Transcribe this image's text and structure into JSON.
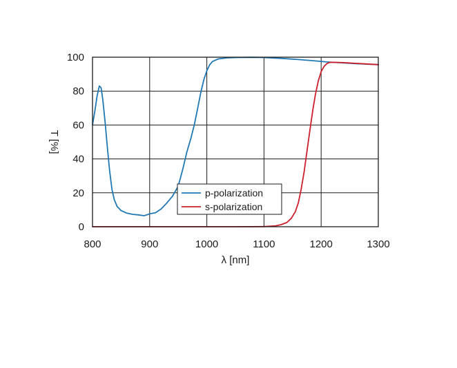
{
  "chart_data": {
    "type": "line",
    "title": "",
    "xlabel": "λ [nm]",
    "ylabel": "T [%]",
    "xlim": [
      800,
      1300
    ],
    "ylim": [
      0,
      100
    ],
    "xticks": [
      800,
      900,
      1000,
      1100,
      1200,
      1300
    ],
    "yticks": [
      0,
      20,
      40,
      60,
      80,
      100
    ],
    "x_tick_labels": [
      "800",
      "900",
      "1000",
      "1100",
      "1200",
      "1300"
    ],
    "y_tick_labels": [
      "0",
      "20",
      "40",
      "60",
      "80",
      "100"
    ],
    "grid": true,
    "legend_position": "bottom-center",
    "series": [
      {
        "name": "p-polarization",
        "color": "#1f77b4",
        "points": [
          [
            800,
            60
          ],
          [
            804,
            68
          ],
          [
            808,
            77
          ],
          [
            812,
            83
          ],
          [
            815,
            82
          ],
          [
            818,
            75
          ],
          [
            822,
            62
          ],
          [
            826,
            47
          ],
          [
            830,
            33
          ],
          [
            834,
            22
          ],
          [
            838,
            16
          ],
          [
            843,
            12
          ],
          [
            850,
            9.5
          ],
          [
            860,
            8
          ],
          [
            870,
            7.3
          ],
          [
            880,
            7
          ],
          [
            890,
            6.5
          ],
          [
            895,
            7
          ],
          [
            900,
            7.6
          ],
          [
            910,
            8.2
          ],
          [
            920,
            10.5
          ],
          [
            930,
            14
          ],
          [
            940,
            18
          ],
          [
            950,
            24
          ],
          [
            958,
            34
          ],
          [
            965,
            44
          ],
          [
            972,
            52
          ],
          [
            978,
            60
          ],
          [
            984,
            70
          ],
          [
            990,
            80
          ],
          [
            995,
            87
          ],
          [
            1000,
            92
          ],
          [
            1005,
            95.5
          ],
          [
            1010,
            97.5
          ],
          [
            1020,
            99
          ],
          [
            1035,
            99.6
          ],
          [
            1050,
            99.8
          ],
          [
            1080,
            99.9
          ],
          [
            1100,
            99.8
          ],
          [
            1130,
            99.3
          ],
          [
            1160,
            98.6
          ],
          [
            1190,
            97.8
          ],
          [
            1210,
            97.2
          ],
          [
            1230,
            96.8
          ],
          [
            1260,
            96.2
          ],
          [
            1300,
            95.6
          ]
        ]
      },
      {
        "name": "s-polarization",
        "color": "#cc1f2b",
        "points": [
          [
            800,
            0
          ],
          [
            1050,
            0
          ],
          [
            1100,
            0.1
          ],
          [
            1120,
            0.5
          ],
          [
            1130,
            1.2
          ],
          [
            1140,
            2.5
          ],
          [
            1148,
            5
          ],
          [
            1155,
            9
          ],
          [
            1160,
            14
          ],
          [
            1165,
            22
          ],
          [
            1170,
            32
          ],
          [
            1175,
            44
          ],
          [
            1180,
            56
          ],
          [
            1185,
            68
          ],
          [
            1190,
            78
          ],
          [
            1195,
            86
          ],
          [
            1200,
            91.5
          ],
          [
            1205,
            94.5
          ],
          [
            1210,
            96.2
          ],
          [
            1215,
            96.9
          ],
          [
            1220,
            97
          ],
          [
            1240,
            96.8
          ],
          [
            1260,
            96.4
          ],
          [
            1280,
            96
          ],
          [
            1300,
            95.6
          ]
        ]
      }
    ]
  }
}
